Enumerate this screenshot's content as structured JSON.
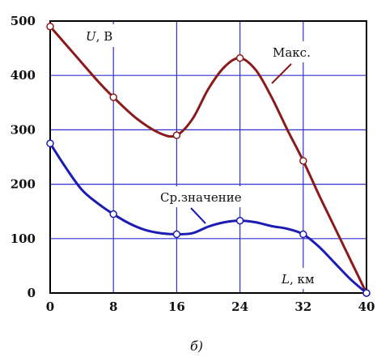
{
  "chart_data": {
    "type": "line",
    "x": [
      0,
      8,
      16,
      24,
      32,
      40
    ],
    "xlim": [
      0,
      40
    ],
    "ylim": [
      0,
      500
    ],
    "x_ticks": [
      0,
      8,
      16,
      24,
      32,
      40
    ],
    "y_ticks": [
      0,
      100,
      200,
      300,
      400,
      500
    ],
    "grid": true,
    "series": [
      {
        "name": "Макс.",
        "color": "#8b1a1a",
        "values": [
          490,
          360,
          290,
          432,
          243,
          0
        ],
        "curve": [
          [
            0,
            490
          ],
          [
            3,
            440
          ],
          [
            6,
            390
          ],
          [
            8,
            360
          ],
          [
            11,
            320
          ],
          [
            14,
            293
          ],
          [
            16,
            290
          ],
          [
            18,
            320
          ],
          [
            20,
            375
          ],
          [
            22,
            415
          ],
          [
            24,
            432
          ],
          [
            26,
            410
          ],
          [
            28,
            360
          ],
          [
            30,
            300
          ],
          [
            32,
            243
          ],
          [
            34,
            180
          ],
          [
            36,
            120
          ],
          [
            38,
            60
          ],
          [
            40,
            0
          ]
        ]
      },
      {
        "name": "Ср.значение",
        "color": "#1c1cb4",
        "values": [
          275,
          145,
          108,
          133,
          108,
          0
        ],
        "curve": [
          [
            0,
            275
          ],
          [
            2,
            230
          ],
          [
            4,
            190
          ],
          [
            6,
            165
          ],
          [
            8,
            145
          ],
          [
            10,
            128
          ],
          [
            12,
            116
          ],
          [
            14,
            110
          ],
          [
            16,
            108
          ],
          [
            18,
            110
          ],
          [
            20,
            122
          ],
          [
            22,
            130
          ],
          [
            24,
            133
          ],
          [
            26,
            130
          ],
          [
            28,
            123
          ],
          [
            30,
            118
          ],
          [
            32,
            108
          ],
          [
            34,
            85
          ],
          [
            36,
            55
          ],
          [
            38,
            25
          ],
          [
            40,
            0
          ]
        ]
      }
    ],
    "y_axis_label": {
      "var": "U",
      "unit": ", В"
    },
    "x_axis_label": {
      "var": "L",
      "unit": ", км"
    },
    "caption": "б)"
  }
}
